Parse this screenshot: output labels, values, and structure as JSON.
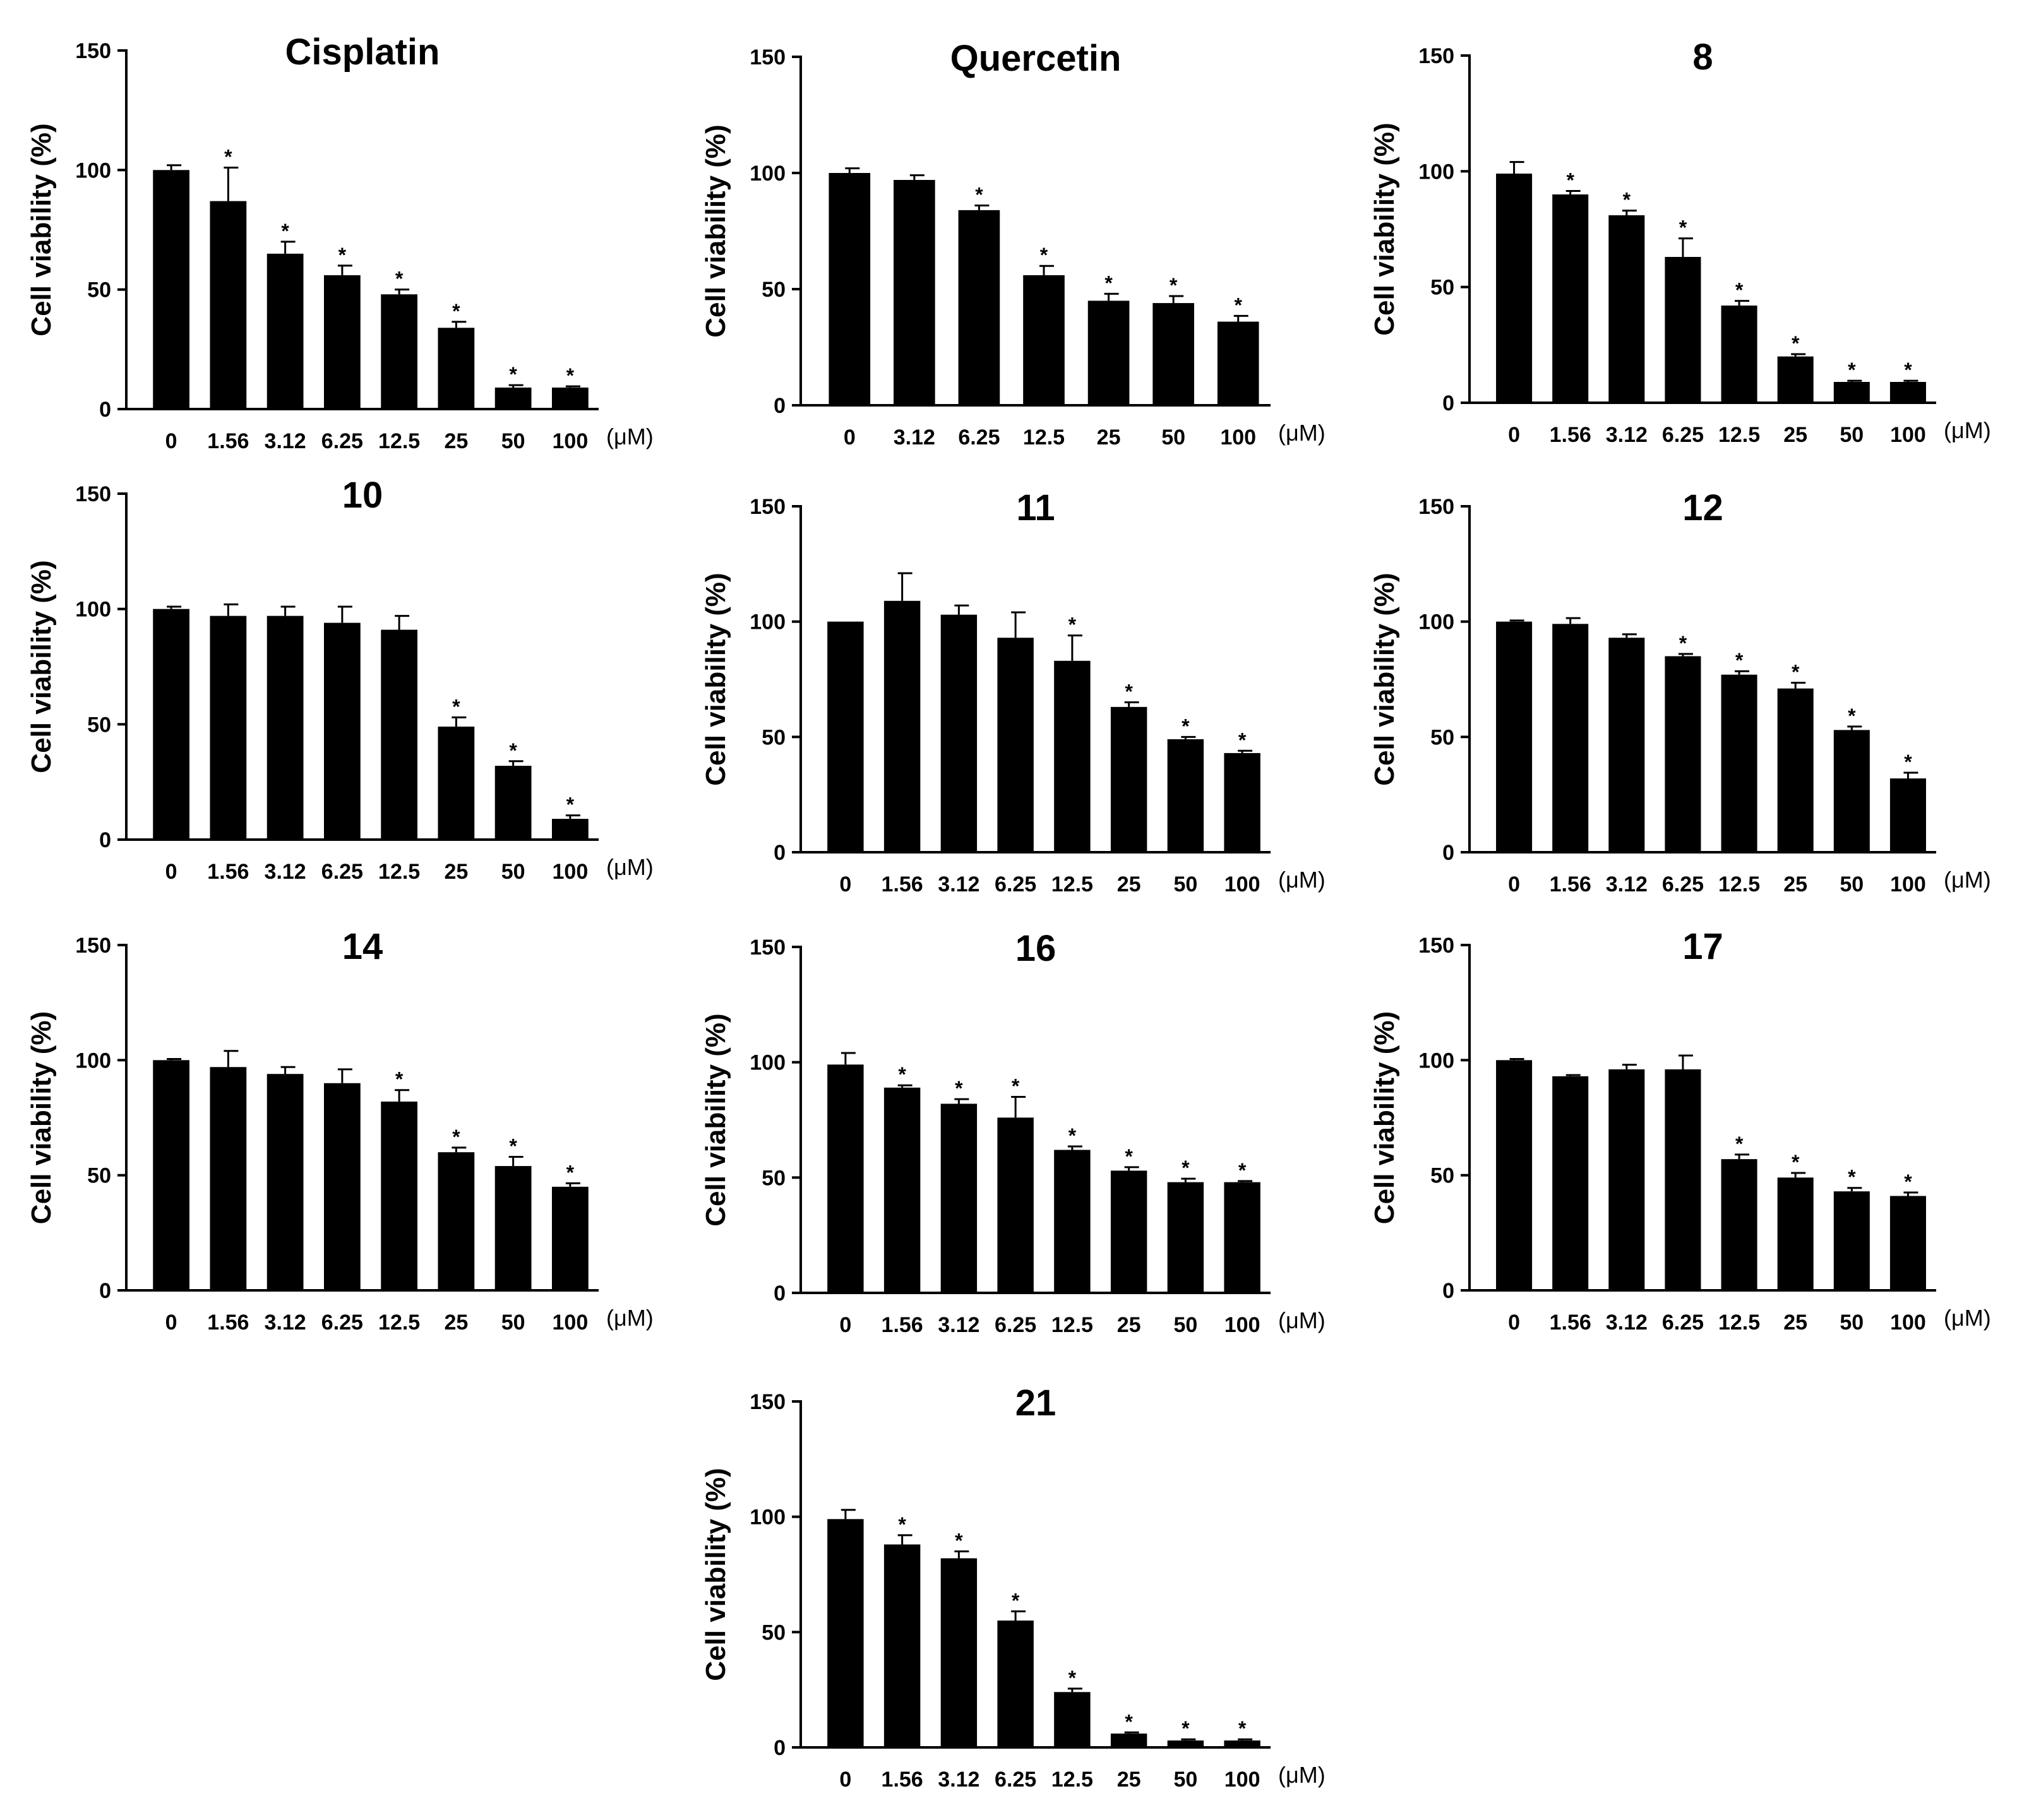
{
  "figure": {
    "ylabel": "Cell viability (%)",
    "unit": "(μM)",
    "sig_mark": "*",
    "bar_color": "#000000"
  },
  "chart_data": [
    {
      "type": "bar",
      "title": "Cisplatin",
      "categories": [
        "0",
        "1.56",
        "3.12",
        "6.25",
        "12.5",
        "25",
        "50",
        "100"
      ],
      "values": [
        100,
        87,
        65,
        56,
        48,
        34,
        9,
        9
      ],
      "errors": [
        2,
        14,
        5,
        4,
        2,
        2.5,
        1,
        0.5
      ],
      "significant": [
        false,
        true,
        true,
        true,
        true,
        true,
        true,
        true
      ],
      "yticks": [
        "0",
        "50",
        "100",
        "150"
      ],
      "ylim": [
        0,
        150
      ]
    },
    {
      "type": "bar",
      "title": "Quercetin",
      "categories": [
        "0",
        "3.12",
        "6.25",
        "12.5",
        "25",
        "50",
        "100"
      ],
      "values": [
        100,
        97,
        84,
        56,
        45,
        44,
        36
      ],
      "errors": [
        2,
        2,
        2,
        4,
        3,
        3,
        2.5
      ],
      "significant": [
        false,
        false,
        true,
        true,
        true,
        true,
        true
      ],
      "yticks": [
        "0",
        "50",
        "100",
        "150"
      ],
      "ylim": [
        0,
        150
      ]
    },
    {
      "type": "bar",
      "title": "8",
      "categories": [
        "0",
        "1.56",
        "3.12",
        "6.25",
        "12.5",
        "25",
        "50",
        "100"
      ],
      "values": [
        99,
        90,
        81,
        63,
        42,
        20,
        9,
        9
      ],
      "errors": [
        5,
        1.5,
        2,
        8,
        2,
        1,
        0.5,
        0.5
      ],
      "significant": [
        false,
        true,
        true,
        true,
        true,
        true,
        true,
        true
      ],
      "yticks": [
        "0",
        "50",
        "100",
        "150"
      ],
      "ylim": [
        0,
        150
      ]
    },
    {
      "type": "bar",
      "title": "10",
      "categories": [
        "0",
        "1.56",
        "3.12",
        "6.25",
        "12.5",
        "25",
        "50",
        "100"
      ],
      "values": [
        100,
        97,
        97,
        94,
        91,
        49,
        32,
        9
      ],
      "errors": [
        1,
        5,
        4,
        7,
        6,
        4,
        2,
        1.5
      ],
      "significant": [
        false,
        false,
        false,
        false,
        false,
        true,
        true,
        true
      ],
      "yticks": [
        "0",
        "50",
        "100",
        "150"
      ],
      "ylim": [
        0,
        150
      ]
    },
    {
      "type": "bar",
      "title": "11",
      "categories": [
        "0",
        "1.56",
        "3.12",
        "6.25",
        "12.5",
        "25",
        "50",
        "100"
      ],
      "values": [
        100,
        109,
        103,
        93,
        83,
        63,
        49,
        43
      ],
      "errors": [
        0,
        12,
        4,
        11,
        11,
        2,
        1,
        1
      ],
      "significant": [
        false,
        false,
        false,
        false,
        true,
        true,
        true,
        true
      ],
      "yticks": [
        "0",
        "50",
        "100",
        "150"
      ],
      "ylim": [
        0,
        150
      ]
    },
    {
      "type": "bar",
      "title": "12",
      "categories": [
        "0",
        "1.56",
        "3.12",
        "6.25",
        "12.5",
        "25",
        "50",
        "100"
      ],
      "values": [
        100,
        99,
        93,
        85,
        77,
        71,
        53,
        32
      ],
      "errors": [
        0.5,
        2.5,
        1.5,
        1,
        1.5,
        2.5,
        1.5,
        2.5
      ],
      "significant": [
        false,
        false,
        false,
        true,
        true,
        true,
        true,
        true
      ],
      "yticks": [
        "0",
        "50",
        "100",
        "150"
      ],
      "ylim": [
        0,
        150
      ]
    },
    {
      "type": "bar",
      "title": "14",
      "categories": [
        "0",
        "1.56",
        "3.12",
        "6.25",
        "12.5",
        "25",
        "50",
        "100"
      ],
      "values": [
        100,
        97,
        94,
        90,
        82,
        60,
        54,
        45
      ],
      "errors": [
        0.5,
        7,
        3,
        6,
        5,
        2,
        4,
        1.5
      ],
      "significant": [
        false,
        false,
        false,
        false,
        true,
        true,
        true,
        true
      ],
      "yticks": [
        "0",
        "50",
        "100",
        "150"
      ],
      "ylim": [
        0,
        150
      ]
    },
    {
      "type": "bar",
      "title": "16",
      "categories": [
        "0",
        "1.56",
        "3.12",
        "6.25",
        "12.5",
        "25",
        "50",
        "100"
      ],
      "values": [
        99,
        89,
        82,
        76,
        62,
        53,
        48,
        48
      ],
      "errors": [
        5,
        1,
        2,
        9,
        1.5,
        1.5,
        1.5,
        0.5
      ],
      "significant": [
        false,
        true,
        true,
        true,
        true,
        true,
        true,
        true
      ],
      "yticks": [
        "0",
        "50",
        "100",
        "150"
      ],
      "ylim": [
        0,
        150
      ]
    },
    {
      "type": "bar",
      "title": "17",
      "categories": [
        "0",
        "1.56",
        "3.12",
        "6.25",
        "12.5",
        "25",
        "50",
        "100"
      ],
      "values": [
        100,
        93,
        96,
        96,
        57,
        49,
        43,
        41
      ],
      "errors": [
        0.5,
        0.5,
        2,
        6,
        2,
        2,
        1.5,
        1.5
      ],
      "significant": [
        false,
        false,
        false,
        false,
        true,
        true,
        true,
        true
      ],
      "yticks": [
        "0",
        "50",
        "100",
        "150"
      ],
      "ylim": [
        0,
        150
      ]
    },
    {
      "type": "bar",
      "title": "21",
      "categories": [
        "0",
        "1.56",
        "3.12",
        "6.25",
        "12.5",
        "25",
        "50",
        "100"
      ],
      "values": [
        99,
        88,
        82,
        55,
        24,
        6,
        3,
        3
      ],
      "errors": [
        4,
        4,
        3,
        4,
        1.5,
        0.5,
        0.5,
        0.5
      ],
      "significant": [
        false,
        true,
        true,
        true,
        true,
        true,
        true,
        true
      ],
      "yticks": [
        "0",
        "50",
        "100",
        "150"
      ],
      "ylim": [
        0,
        150
      ]
    }
  ]
}
